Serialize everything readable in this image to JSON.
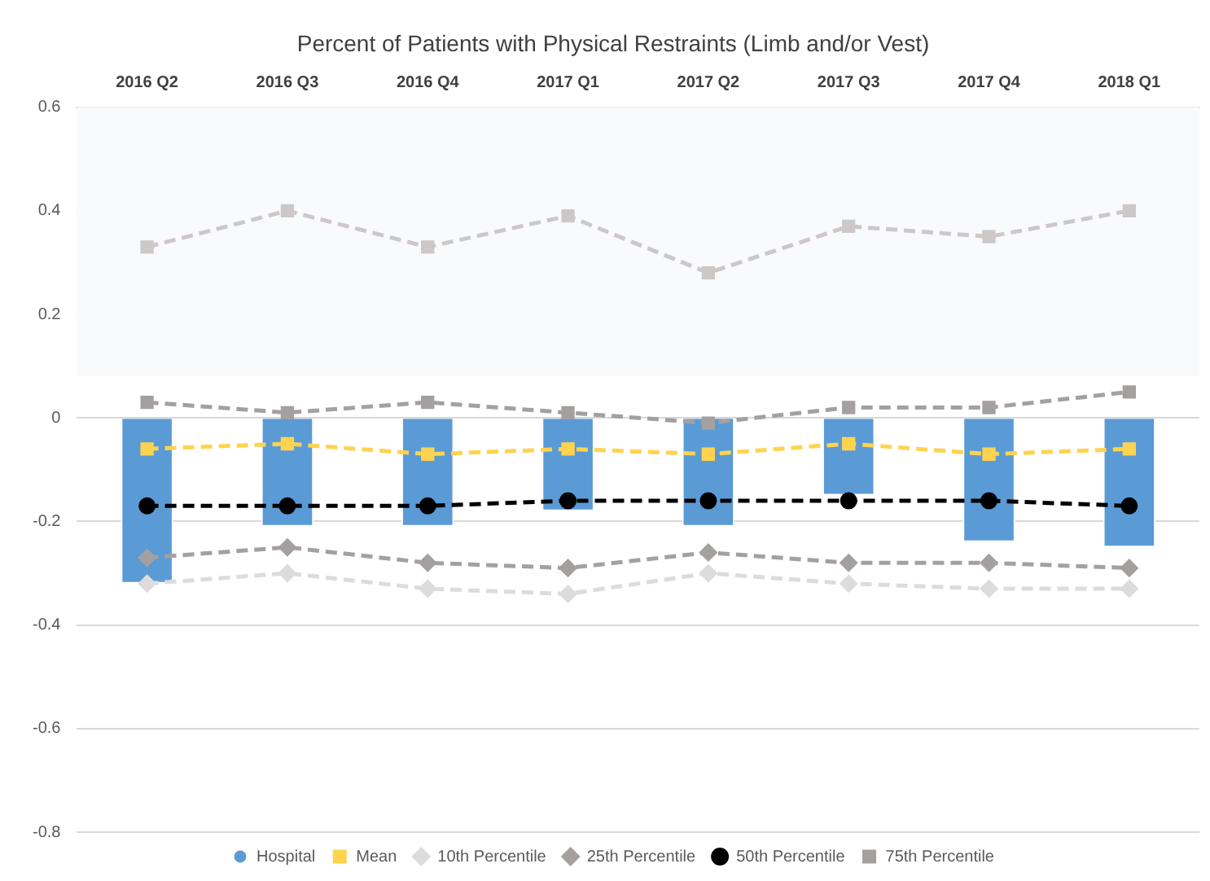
{
  "chart_data": {
    "type": "bar",
    "title": "Percent of Patients with Physical Restraints (Limb and/or Vest)",
    "categories": [
      "2016 Q2",
      "2016 Q3",
      "2016 Q4",
      "2017 Q1",
      "2017 Q2",
      "2017 Q3",
      "2017 Q4",
      "2018 Q1"
    ],
    "series": [
      {
        "name": "Hospital",
        "color": "#5b9bd5",
        "values": [
          -0.32,
          -0.21,
          -0.21,
          -0.18,
          -0.21,
          -0.15,
          -0.24,
          -0.25
        ]
      },
      {
        "name": "Mean",
        "type": "line",
        "color": "#ffd34f",
        "marker": "square",
        "line_style": "dashed",
        "values": [
          -0.06,
          -0.05,
          -0.07,
          -0.06,
          -0.07,
          -0.05,
          -0.07,
          -0.06
        ]
      },
      {
        "name": "10th Percentile",
        "type": "line",
        "color": "#dcdcdc",
        "marker": "diamond",
        "line_style": "dashed",
        "values": [
          -0.32,
          -0.3,
          -0.33,
          -0.34,
          -0.3,
          -0.32,
          -0.33,
          -0.33
        ]
      },
      {
        "name": "25th Percentile",
        "type": "line",
        "color": "#a5a0a0",
        "marker": "diamond",
        "line_style": "dashed",
        "values": [
          -0.27,
          -0.25,
          -0.28,
          -0.29,
          -0.26,
          -0.28,
          -0.28,
          -0.29
        ]
      },
      {
        "name": "50th Percentile",
        "type": "line",
        "color": "#000000",
        "marker": "circle",
        "line_style": "dashed",
        "values": [
          -0.17,
          -0.17,
          -0.17,
          -0.16,
          -0.16,
          -0.16,
          -0.16,
          -0.17
        ]
      },
      {
        "name": "75th Percentile",
        "type": "line",
        "color": "#a5a0a0",
        "marker": "square",
        "line_style": "dashed",
        "values": [
          0.03,
          0.01,
          0.03,
          0.01,
          -0.01,
          0.02,
          0.02,
          0.05
        ]
      },
      {
        "type": "line",
        "color": "#cdc8c8",
        "marker": "square",
        "line_style": "dashed",
        "values": [
          0.33,
          0.4,
          0.33,
          0.39,
          0.28,
          0.37,
          0.35,
          0.4
        ]
      }
    ],
    "ylim": [
      -0.8,
      0.6
    ],
    "yticks": [
      -0.8,
      -0.6,
      -0.4,
      -0.2,
      0,
      0.2,
      0.4,
      0.6
    ],
    "bands": [
      {
        "axis": "y",
        "from": 0.08,
        "to": 0.6,
        "color": "#f9fafb"
      }
    ],
    "grid": "y",
    "legend": "bottom"
  }
}
